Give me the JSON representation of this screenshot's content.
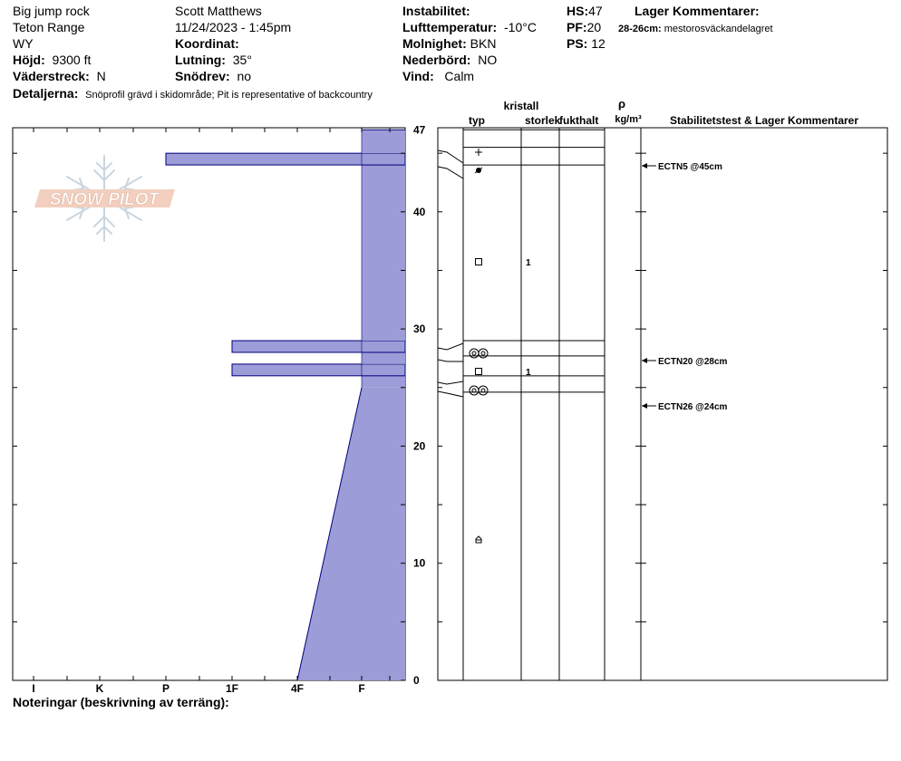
{
  "header": {
    "location": "Big jump rock",
    "range": "Teton Range",
    "state": "WY",
    "elevation_label": "Höjd:",
    "elevation": "9300 ft",
    "aspect_label": "Väderstreck:",
    "aspect": "N",
    "observer": "Scott Matthews",
    "datetime": "11/24/2023 - 1:45pm",
    "coord_label": "Koordinat:",
    "coord": "",
    "slope_label": "Lutning:",
    "slope": "35°",
    "wind_loading_label": "Snödrev:",
    "wind_loading": "no",
    "stability_label": "Instabilitet:",
    "stability": "",
    "air_temp_label": "Lufttemperatur:",
    "air_temp": "-10°C",
    "sky_label": "Molnighet:",
    "sky": "BKN",
    "precip_label": "Nederbörd:",
    "precip": "NO",
    "wind_label": "Vind:",
    "wind": "Calm",
    "hs_label": "HS:",
    "hs": "47",
    "pf_label": "PF:",
    "pf": "20",
    "ps_label": "PS:",
    "ps": "12",
    "layer_comments_label": "Lager Kommentarer:",
    "layer_comment_depth": "28-26cm:",
    "layer_comment_text": "mestorosväckandelagret",
    "details_label": "Detaljerna:",
    "details": "Snöprofil grävd i skidområde;  Pit is representative of backcountry"
  },
  "columns": {
    "type": "typ",
    "crystal": "kristall",
    "size": "storlek",
    "moisture": "fukthalt",
    "rho": "ρ",
    "density_unit": "kg/m³",
    "stability": "Stabilitetstest & Lager Kommentarer"
  },
  "footer": {
    "notes_label": "Noteringar (beskrivning av terräng):"
  },
  "logo_text": "SNOW PILOT",
  "colors": {
    "hardness_fill": "#9c9cd8",
    "hardness_stroke": "#00007a"
  },
  "chart_data": {
    "type": "snow-profile",
    "height_axis": {
      "min": 0,
      "max": 47,
      "ticks": [
        0,
        10,
        20,
        30,
        40,
        47
      ]
    },
    "hardness_axis": {
      "labels": [
        "I",
        "K",
        "P",
        "1F",
        "4F",
        "F"
      ]
    },
    "hardness_profile": [
      {
        "bottom": 0,
        "top": 25,
        "hardness_bottom": "4F",
        "hardness_top": "F"
      },
      {
        "bottom": 25,
        "top": 26,
        "hardness": "F"
      },
      {
        "bottom": 26,
        "top": 27,
        "hardness": "1F"
      },
      {
        "bottom": 27,
        "top": 28,
        "hardness": "F"
      },
      {
        "bottom": 28,
        "top": 29,
        "hardness": "1F"
      },
      {
        "bottom": 29,
        "top": 44,
        "hardness": "F"
      },
      {
        "bottom": 44,
        "top": 45,
        "hardness": "P"
      },
      {
        "bottom": 45,
        "top": 47,
        "hardness": "F"
      }
    ],
    "layers": [
      {
        "top": 47,
        "bottom": 45.5,
        "grain": "+",
        "size": ""
      },
      {
        "top": 45.5,
        "bottom": 44,
        "grain": "rounded-bullet",
        "size": ""
      },
      {
        "top": 44,
        "bottom": 29,
        "grain": "faceted-square",
        "size": "1"
      },
      {
        "top": 29,
        "bottom": 27.7,
        "grain": "double-circle",
        "size": ""
      },
      {
        "top": 27.7,
        "bottom": 26,
        "grain": "faceted-square",
        "size": "1"
      },
      {
        "top": 26,
        "bottom": 24.6,
        "grain": "double-circle",
        "size": ""
      },
      {
        "top": 24.6,
        "bottom": 0,
        "grain": "depth-hoar",
        "size": ""
      }
    ],
    "stability_tests": [
      {
        "height": 45,
        "label": "ECTN5 @45cm"
      },
      {
        "height": 28,
        "label": "ECTN20 @28cm"
      },
      {
        "height": 24,
        "label": "ECTN26 @24cm"
      }
    ]
  }
}
